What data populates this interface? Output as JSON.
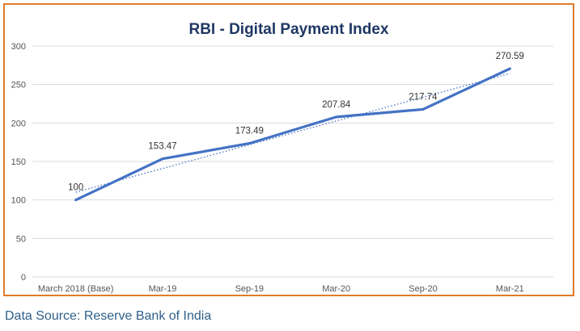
{
  "source_note": "Data Source: Reserve Bank of India",
  "chart_data": {
    "type": "line",
    "title": "RBI - Digital Payment Index",
    "categories": [
      "March 2018 (Base)",
      "Mar-19",
      "Sep-19",
      "Mar-20",
      "Sep-20",
      "Mar-21"
    ],
    "series": [
      {
        "values": [
          100,
          153.47,
          173.49,
          207.84,
          217.74,
          270.59
        ],
        "color": "#4472c4"
      }
    ],
    "data_labels": [
      "100",
      "153.47",
      "173.49",
      "207.84",
      "217.74",
      "270.59"
    ],
    "trendline": {
      "style": "dotted",
      "color": "#4472c4"
    },
    "ylim": [
      0,
      300
    ],
    "yticks": [
      0,
      50,
      100,
      150,
      200,
      250,
      300
    ],
    "grid": true,
    "legend": "none",
    "border_color": "#e07b2a",
    "title_color": "#1f3763"
  }
}
